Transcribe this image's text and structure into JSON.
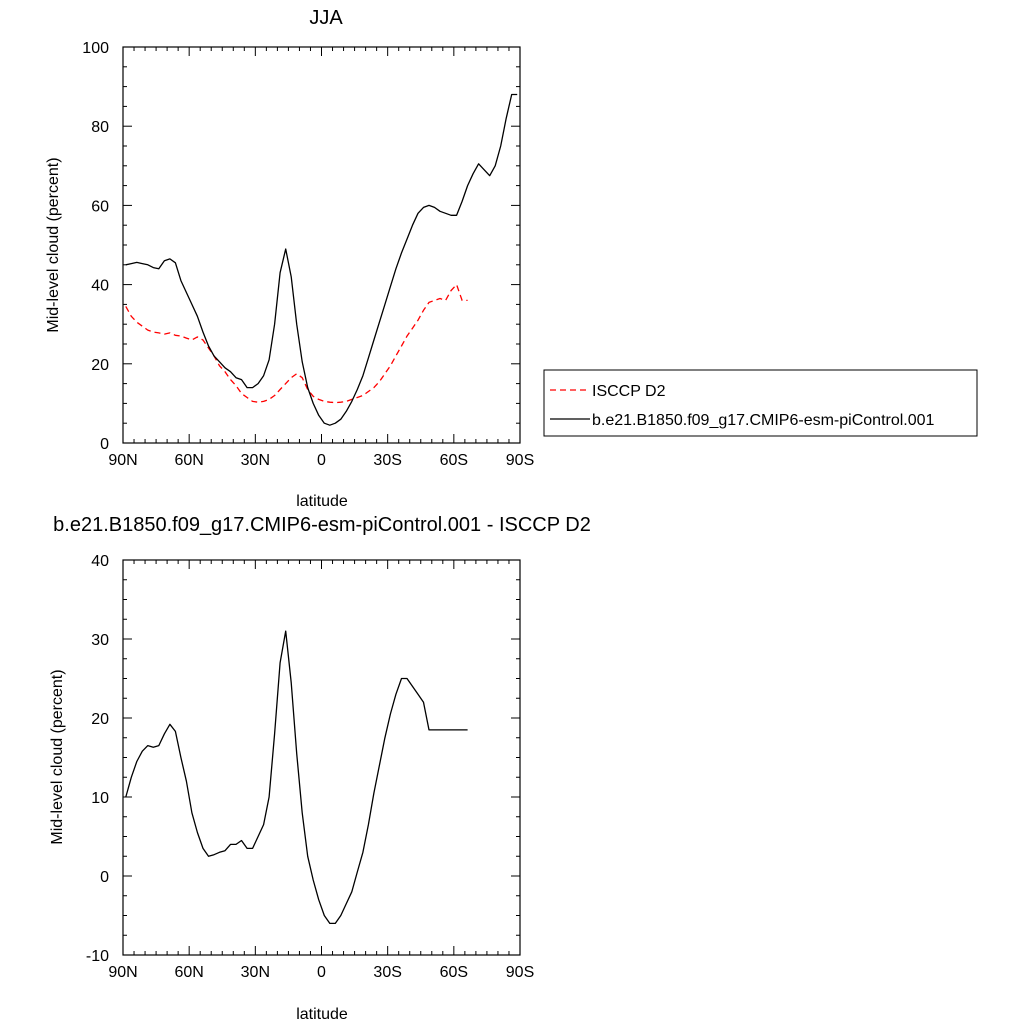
{
  "chart_data": [
    {
      "type": "line",
      "title": "JJA",
      "xlabel": "latitude",
      "ylabel": "Mid-level cloud (percent)",
      "xlim": [
        90,
        -90
      ],
      "ylim": [
        0,
        100
      ],
      "xticks": [
        90,
        60,
        30,
        0,
        -30,
        -60,
        -90
      ],
      "xtick_labels": [
        "90N",
        "60N",
        "30N",
        "0",
        "30S",
        "60S",
        "90S"
      ],
      "yticks": [
        0,
        20,
        40,
        60,
        80,
        100
      ],
      "ytick_labels": [
        "0",
        "20",
        "40",
        "60",
        "80",
        "100"
      ],
      "legend_placement": "right",
      "series": [
        {
          "name": "ISCCP D2",
          "color": "#ff0000",
          "style": "dashed",
          "x": [
            88.75,
            86.25,
            83.75,
            81.25,
            78.75,
            76.25,
            73.75,
            71.25,
            68.75,
            66.25,
            63.75,
            61.25,
            58.75,
            56.25,
            53.75,
            51.25,
            48.75,
            46.25,
            43.75,
            41.25,
            38.75,
            36.25,
            33.75,
            31.25,
            28.75,
            26.25,
            23.75,
            21.25,
            18.75,
            16.25,
            13.75,
            11.25,
            8.75,
            6.25,
            3.75,
            1.25,
            -1.25,
            -3.75,
            -6.25,
            -8.75,
            -11.25,
            -13.75,
            -16.25,
            -18.75,
            -21.25,
            -23.75,
            -26.25,
            -28.75,
            -31.25,
            -33.75,
            -36.25,
            -38.75,
            -41.25,
            -43.75,
            -46.25,
            -48.75,
            -51.25,
            -53.75,
            -56.25,
            -58.75,
            -61.25,
            -63.75,
            -66.25
          ],
          "y": [
            34.5,
            32.0,
            30.5,
            29.5,
            28.5,
            28.0,
            27.8,
            27.5,
            27.8,
            27.2,
            27.0,
            26.5,
            26.0,
            26.8,
            26.0,
            24.0,
            22.0,
            19.5,
            18.0,
            16.0,
            14.5,
            12.5,
            11.5,
            10.5,
            10.3,
            10.5,
            11.0,
            12.0,
            13.5,
            15.0,
            16.5,
            17.5,
            16.5,
            13.5,
            11.8,
            11.0,
            10.5,
            10.3,
            10.2,
            10.3,
            10.5,
            11.0,
            11.5,
            12.0,
            13.0,
            14.0,
            15.5,
            17.5,
            19.5,
            22.0,
            24.5,
            27.0,
            29.0,
            31.0,
            33.5,
            35.5,
            36.0,
            36.5,
            36.0,
            38.5,
            40.0,
            36.0,
            36.0
          ]
        },
        {
          "name": "b.e21.B1850.f09_g17.CMIP6-esm-piControl.001",
          "color": "#000000",
          "style": "solid",
          "x": [
            88.75,
            86.25,
            83.75,
            81.25,
            78.75,
            76.25,
            73.75,
            71.25,
            68.75,
            66.25,
            63.75,
            61.25,
            58.75,
            56.25,
            53.75,
            51.25,
            48.75,
            46.25,
            43.75,
            41.25,
            38.75,
            36.25,
            33.75,
            31.25,
            28.75,
            26.25,
            23.75,
            21.25,
            18.75,
            16.25,
            13.75,
            11.25,
            8.75,
            6.25,
            3.75,
            1.25,
            -1.25,
            -3.75,
            -6.25,
            -8.75,
            -11.25,
            -13.75,
            -16.25,
            -18.75,
            -21.25,
            -23.75,
            -26.25,
            -28.75,
            -31.25,
            -33.75,
            -36.25,
            -38.75,
            -41.25,
            -43.75,
            -46.25,
            -48.75,
            -51.25,
            -53.75,
            -56.25,
            -58.75,
            -61.25,
            -63.75,
            -66.25,
            -68.75,
            -71.25,
            -73.75,
            -76.25,
            -78.75,
            -81.25,
            -83.75,
            -86.25,
            -88.75
          ],
          "y": [
            45.0,
            45.3,
            45.6,
            45.3,
            45.0,
            44.3,
            44.0,
            46.0,
            46.5,
            45.5,
            41.0,
            38.0,
            35.0,
            32.0,
            28.0,
            24.5,
            22.0,
            20.5,
            19.0,
            18.0,
            16.5,
            16.0,
            14.0,
            14.0,
            15.0,
            17.0,
            21.0,
            30.0,
            43.0,
            49.0,
            42.0,
            30.0,
            20.5,
            14.0,
            10.0,
            7.0,
            5.0,
            4.5,
            5.0,
            6.0,
            8.0,
            10.5,
            13.5,
            17.0,
            21.5,
            26.0,
            30.5,
            35.0,
            39.5,
            44.0,
            48.0,
            51.5,
            55.0,
            58.0,
            59.5,
            60.0,
            59.5,
            58.5,
            58.0,
            57.5,
            57.5,
            61.0,
            65.0,
            68.0,
            70.5,
            69.0,
            67.5,
            70.0,
            75.0,
            82.0,
            88.0,
            88.0
          ]
        }
      ]
    },
    {
      "type": "line",
      "title": "b.e21.B1850.f09_g17.CMIP6-esm-piControl.001 - ISCCP D2",
      "xlabel": "latitude",
      "ylabel": "Mid-level cloud (percent)",
      "xlim": [
        90,
        -90
      ],
      "ylim": [
        -10,
        40
      ],
      "xticks": [
        90,
        60,
        30,
        0,
        -30,
        -60,
        -90
      ],
      "xtick_labels": [
        "90N",
        "60N",
        "30N",
        "0",
        "30S",
        "60S",
        "90S"
      ],
      "yticks": [
        -10,
        0,
        10,
        20,
        30,
        40
      ],
      "ytick_labels": [
        "-10",
        "0",
        "10",
        "20",
        "30",
        "40"
      ],
      "series": [
        {
          "color": "#000000",
          "style": "solid",
          "x": [
            88.75,
            86.25,
            83.75,
            81.25,
            78.75,
            76.25,
            73.75,
            71.25,
            68.75,
            66.25,
            63.75,
            61.25,
            58.75,
            56.25,
            53.75,
            51.25,
            48.75,
            46.25,
            43.75,
            41.25,
            38.75,
            36.25,
            33.75,
            31.25,
            28.75,
            26.25,
            23.75,
            21.25,
            18.75,
            16.25,
            13.75,
            11.25,
            8.75,
            6.25,
            3.75,
            1.25,
            -1.25,
            -3.75,
            -6.25,
            -8.75,
            -11.25,
            -13.75,
            -16.25,
            -18.75,
            -21.25,
            -23.75,
            -26.25,
            -28.75,
            -31.25,
            -33.75,
            -36.25,
            -38.75,
            -41.25,
            -43.75,
            -46.25,
            -48.75,
            -51.25,
            -53.75,
            -56.25,
            -58.75,
            -61.25,
            -63.75,
            -66.25
          ],
          "y": [
            10.0,
            12.5,
            14.5,
            15.8,
            16.5,
            16.3,
            16.5,
            18.0,
            19.2,
            18.3,
            15.0,
            12.0,
            8.0,
            5.5,
            3.5,
            2.5,
            2.7,
            3.0,
            3.2,
            4.0,
            4.0,
            4.5,
            3.5,
            3.5,
            5.0,
            6.5,
            10.0,
            18.0,
            27.0,
            31.0,
            24.5,
            15.5,
            8.0,
            2.5,
            -0.5,
            -3.0,
            -5.0,
            -6.0,
            -6.0,
            -5.0,
            -3.5,
            -2.0,
            0.5,
            3.0,
            6.5,
            10.5,
            14.0,
            17.5,
            20.5,
            23.0,
            25.0,
            25.0,
            24.0,
            23.0,
            22.0,
            18.5,
            18.5,
            18.5,
            18.5,
            18.5,
            18.5,
            18.5,
            18.5
          ]
        }
      ]
    }
  ]
}
